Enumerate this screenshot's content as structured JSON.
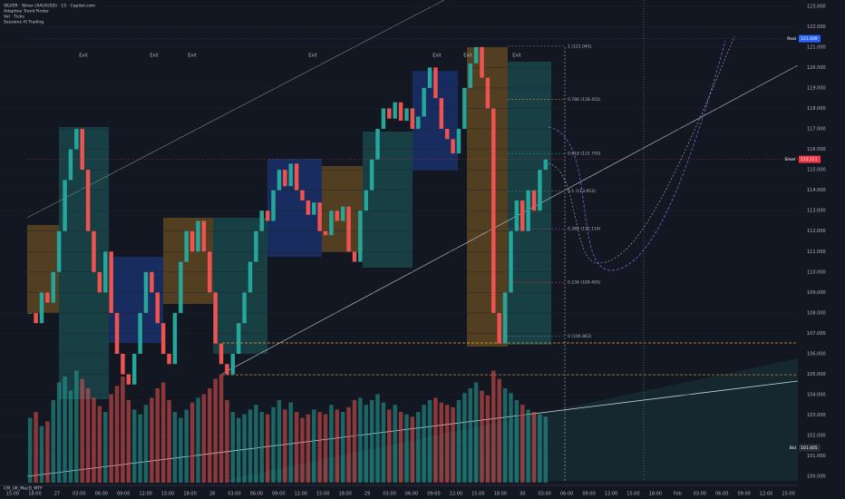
{
  "chart_data": {
    "type": "candlestick",
    "header": [
      "SILVER · Silver (XAU/USD) · 15 · Capital.com",
      "Adaptive Trend Finder",
      "Vol · Ticks",
      "Sessions AI Trading"
    ],
    "indicator_label": "CM_Ult_MacD_MTF",
    "exit_label": "Exit",
    "exit_count": 7,
    "ylim": [
      99.7,
      123.3
    ],
    "yticks": [
      {
        "value": 100,
        "label": "100.000"
      },
      {
        "value": 101,
        "label": "101.000"
      },
      {
        "value": 102,
        "label": "102.000"
      },
      {
        "value": 103,
        "label": "103.000"
      },
      {
        "value": 104,
        "label": "104.000"
      },
      {
        "value": 105,
        "label": "105.000"
      },
      {
        "value": 106,
        "label": "106.000"
      },
      {
        "value": 107,
        "label": "107.000"
      },
      {
        "value": 108,
        "label": "108.000"
      },
      {
        "value": 109,
        "label": "109.000"
      },
      {
        "value": 110,
        "label": "110.000"
      },
      {
        "value": 111,
        "label": "111.000"
      },
      {
        "value": 112,
        "label": "112.000"
      },
      {
        "value": 113,
        "label": "113.000"
      },
      {
        "value": 114,
        "label": "114.000"
      },
      {
        "value": 115,
        "label": "115.000"
      },
      {
        "value": 116,
        "label": "116.000"
      },
      {
        "value": 117,
        "label": "117.000"
      },
      {
        "value": 118,
        "label": "118.000"
      },
      {
        "value": 119,
        "label": "119.000"
      },
      {
        "value": 120,
        "label": "120.000"
      },
      {
        "value": 121,
        "label": "121.000"
      },
      {
        "value": 122,
        "label": "122.000"
      },
      {
        "value": 123,
        "label": "123.000"
      }
    ],
    "x_labels": [
      "15:00",
      "18:00",
      "27",
      "03:00",
      "06:00",
      "09:00",
      "12:00",
      "15:00",
      "18:00",
      "28",
      "03:00",
      "06:00",
      "09:00",
      "12:00",
      "15:00",
      "18:00",
      "29",
      "03:00",
      "06:00",
      "09:00",
      "12:00",
      "15:00",
      "18:00",
      "30",
      "03:00",
      "06:00",
      "09:00",
      "12:00",
      "15:00",
      "18:00",
      "Feb",
      "03:00",
      "06:00",
      "09:00",
      "12:00",
      "15:00"
    ],
    "close": [
      108,
      107.5,
      109,
      108.5,
      110,
      112,
      114.5,
      116,
      117,
      115,
      112,
      110,
      109,
      111,
      108,
      106,
      105,
      104.5,
      106,
      108,
      110,
      109,
      107.5,
      106,
      105.5,
      108,
      110.5,
      112,
      111,
      112.5,
      111,
      109,
      106.5,
      105.5,
      105,
      106,
      107.5,
      109,
      110.5,
      112,
      113,
      112.5,
      114,
      115,
      114.2,
      115.3,
      114,
      113.5,
      112.8,
      113.4,
      112,
      111.8,
      113,
      112.5,
      113.2,
      111,
      110.5,
      113,
      114,
      115.5,
      117,
      118,
      117.5,
      118.3,
      117.4,
      118,
      117,
      117.6,
      119,
      120,
      118.5,
      117,
      116.5,
      115.8,
      117,
      119,
      120.2,
      121,
      119.5,
      118,
      108,
      106.5,
      109,
      112,
      113.5,
      112,
      114,
      113,
      115,
      115.5
    ],
    "volume": [
      55,
      60,
      48,
      52,
      70,
      85,
      90,
      78,
      95,
      88,
      80,
      72,
      65,
      60,
      75,
      82,
      90,
      70,
      62,
      58,
      66,
      72,
      80,
      85,
      70,
      60,
      55,
      62,
      68,
      72,
      75,
      80,
      88,
      92,
      70,
      60,
      55,
      58,
      62,
      66,
      60,
      58,
      64,
      70,
      62,
      68,
      60,
      55,
      58,
      62,
      60,
      58,
      66,
      62,
      60,
      64,
      70,
      72,
      66,
      70,
      75,
      68,
      62,
      66,
      60,
      58,
      56,
      60,
      66,
      70,
      72,
      68,
      66,
      64,
      70,
      76,
      80,
      85,
      78,
      74,
      95,
      88,
      80,
      76,
      70,
      66,
      62,
      60,
      58,
      56
    ],
    "fib_levels": [
      {
        "value": 121.045,
        "label": "1 (121.045)"
      },
      {
        "value": 118.452,
        "label": "0.786 (118.452)"
      },
      {
        "value": 115.793,
        "label": "0.618 (115.793)"
      },
      {
        "value": 113.953,
        "label": "0.5 (113.953)"
      },
      {
        "value": 112.114,
        "label": "0.382 (112.114)"
      },
      {
        "value": 109.495,
        "label": "0.236 (109.495)"
      },
      {
        "value": 106.863,
        "label": "0 (106.863)"
      }
    ],
    "price_tags": [
      {
        "name": "Real",
        "value": 121.409,
        "label": "121.409",
        "color": "#2962ff"
      },
      {
        "name": "Silver",
        "value": 115.511,
        "label": "115.511",
        "color": "#f23645"
      },
      {
        "name": "Bid",
        "value": 101.405,
        "label": "101.405",
        "color": "#2a2e39"
      }
    ],
    "up_color": "#26a69a",
    "down_color": "#ef5350"
  }
}
